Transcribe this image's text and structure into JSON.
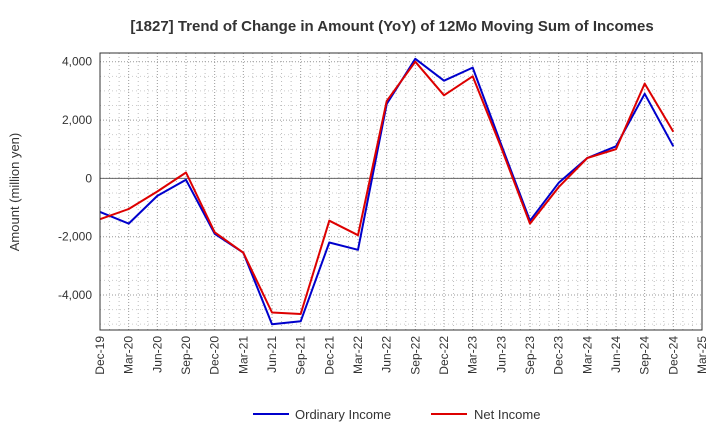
{
  "chart_data": {
    "type": "line",
    "title": "[1827]  Trend of Change in Amount (YoY) of 12Mo Moving Sum of Incomes",
    "ylabel": "Amount (million yen)",
    "xlabel": "",
    "categories": [
      "Dec-19",
      "Mar-20",
      "Jun-20",
      "Sep-20",
      "Dec-20",
      "Mar-21",
      "Jun-21",
      "Sep-21",
      "Dec-21",
      "Mar-22",
      "Jun-22",
      "Sep-22",
      "Dec-22",
      "Mar-23",
      "Jun-23",
      "Sep-23",
      "Dec-23",
      "Mar-24",
      "Jun-24",
      "Sep-24",
      "Dec-24",
      "Mar-25"
    ],
    "ylim": [
      -5200,
      4300
    ],
    "yticks": [
      4000,
      2000,
      0,
      -2000,
      -4000
    ],
    "ytick_labels": [
      "4,000",
      "2,000",
      "0",
      "-2,000",
      "-4,000"
    ],
    "grid": true,
    "legend_position": "bottom",
    "series": [
      {
        "name": "Ordinary Income",
        "color": "#0000cc",
        "values": [
          -1150,
          -1550,
          -600,
          -50,
          -1900,
          -2550,
          -5000,
          -4900,
          -2200,
          -2450,
          2550,
          4100,
          3350,
          3800,
          1150,
          -1450,
          -150,
          700,
          1100,
          2900,
          1100,
          null
        ]
      },
      {
        "name": "Net Income",
        "color": "#dd0000",
        "values": [
          -1400,
          -1050,
          -450,
          200,
          -1850,
          -2550,
          -4600,
          -4650,
          -1450,
          -1950,
          2650,
          4000,
          2850,
          3500,
          1050,
          -1550,
          -300,
          700,
          1000,
          3250,
          1600,
          null
        ]
      }
    ]
  }
}
